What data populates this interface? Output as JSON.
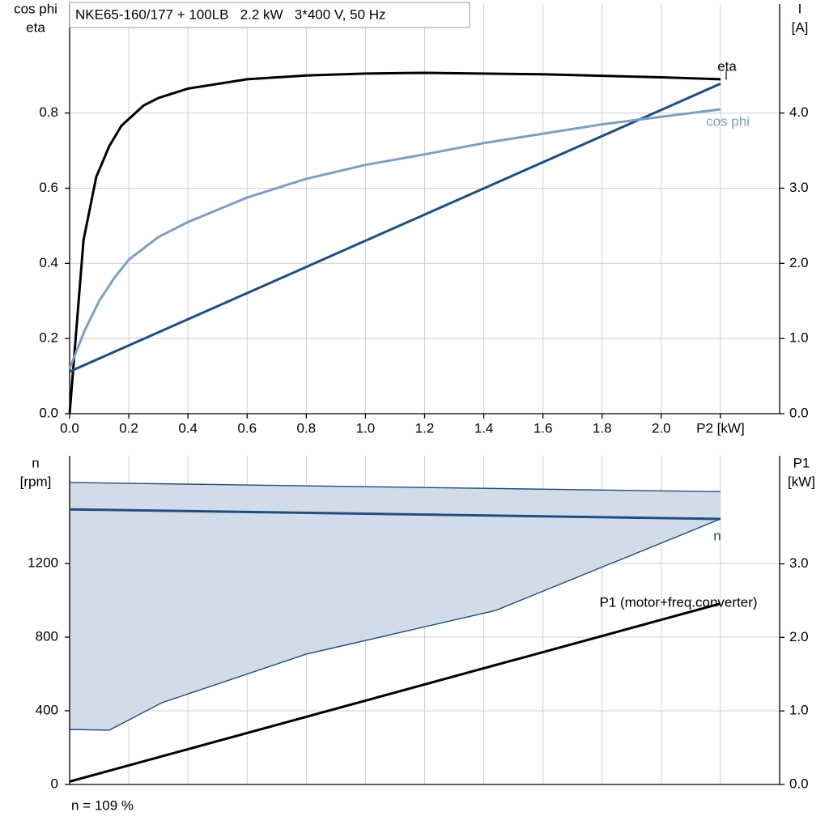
{
  "chart_data": [
    {
      "type": "line",
      "title": "NKE65-160/177 + 100LB   2.2 kW   3*400 V, 50 Hz",
      "ylabel": [
        "cos phi",
        "eta"
      ],
      "y2label": [
        "I",
        "[A]"
      ],
      "xlim": [
        0,
        2.4
      ],
      "xticks": [
        {
          "value": 0,
          "label": "0.0"
        },
        0.2,
        0.4,
        0.6,
        0.8,
        {
          "value": 1,
          "label": "1.0"
        },
        1.2,
        1.4,
        1.6,
        1.8,
        {
          "value": 2,
          "label": "2.0"
        },
        {
          "value": 2.2,
          "label": "P2 [kW]"
        }
      ],
      "xtick_labels": true,
      "ylim": [
        0,
        1.09
      ],
      "yticks": [
        {
          "value": 0,
          "label": "0.0"
        },
        0.2,
        0.4,
        0.6,
        0.8
      ],
      "y2lim": [
        0,
        5.45
      ],
      "y2ticks": [
        {
          "value": 0,
          "label": "0.0"
        },
        {
          "value": 1,
          "label": "1.0"
        },
        {
          "value": 2,
          "label": "2.0"
        },
        {
          "value": 3,
          "label": "3.0"
        },
        {
          "value": 4,
          "label": "4.0"
        }
      ],
      "grid": true,
      "series": [
        {
          "name": "eta",
          "color": "#000000",
          "x": [
            0,
            0.047,
            0.09,
            0.134,
            0.175,
            0.25,
            0.3,
            0.4,
            0.6,
            0.8,
            1.0,
            1.2,
            1.6,
            2.0,
            2.2
          ],
          "values": [
            0,
            0.462,
            0.63,
            0.712,
            0.766,
            0.82,
            0.84,
            0.865,
            0.89,
            0.9,
            0.905,
            0.907,
            0.903,
            0.895,
            0.89
          ]
        },
        {
          "name": "I",
          "color": "#1f4e7e",
          "axis": "y2",
          "x": [
            0,
            2.2
          ],
          "values": [
            0.56,
            4.39
          ]
        },
        {
          "name": "cos phi",
          "color": "#7da0c0",
          "x": [
            0,
            0.05,
            0.1,
            0.15,
            0.2,
            0.3,
            0.4,
            0.6,
            0.8,
            1.0,
            1.2,
            1.4,
            1.6,
            1.8,
            2.0,
            2.2
          ],
          "values": [
            0.12,
            0.22,
            0.3,
            0.36,
            0.41,
            0.47,
            0.51,
            0.575,
            0.625,
            0.662,
            0.69,
            0.72,
            0.745,
            0.77,
            0.79,
            0.81
          ]
        }
      ]
    },
    {
      "type": "line",
      "ylabel": [
        "n",
        "[rpm]"
      ],
      "y2label": [
        "P1",
        "[kW]"
      ],
      "xlim": [
        0,
        2.4
      ],
      "xticks": [
        0.2,
        0.4,
        0.6,
        0.8,
        1,
        1.2,
        1.4,
        1.6,
        1.8,
        2,
        2.2
      ],
      "xtick_labels": false,
      "ylim": [
        0,
        1785
      ],
      "yticks": [
        0,
        400,
        800,
        1200
      ],
      "y2lim": [
        0,
        4.47
      ],
      "y2ticks": [
        {
          "value": 0,
          "label": "0.0"
        },
        {
          "value": 1,
          "label": "1.0"
        },
        {
          "value": 2,
          "label": "2.0"
        },
        {
          "value": 3,
          "label": "3.0"
        }
      ],
      "grid": true,
      "band": {
        "color": "#d2dce8",
        "line_color": "#1f4e7e",
        "upper": {
          "x": [
            0,
            2.2
          ],
          "values": [
            1640,
            1590
          ]
        },
        "lower": {
          "x": [
            0,
            0.134,
            0.312,
            0.8,
            1.44,
            2.2
          ],
          "values": [
            299,
            295,
            444,
            708,
            945,
            1442
          ]
        }
      },
      "series": [
        {
          "name": "n",
          "color": "#1f4e7e",
          "x": [
            0,
            2.2
          ],
          "values": [
            1494,
            1442
          ]
        },
        {
          "name": "P1 (motor+freq.converter)",
          "color": "#000000",
          "axis": "y2",
          "x": [
            0,
            2.2
          ],
          "values": [
            0.04,
            2.46
          ]
        }
      ],
      "footnote": "n = 109 %"
    }
  ]
}
